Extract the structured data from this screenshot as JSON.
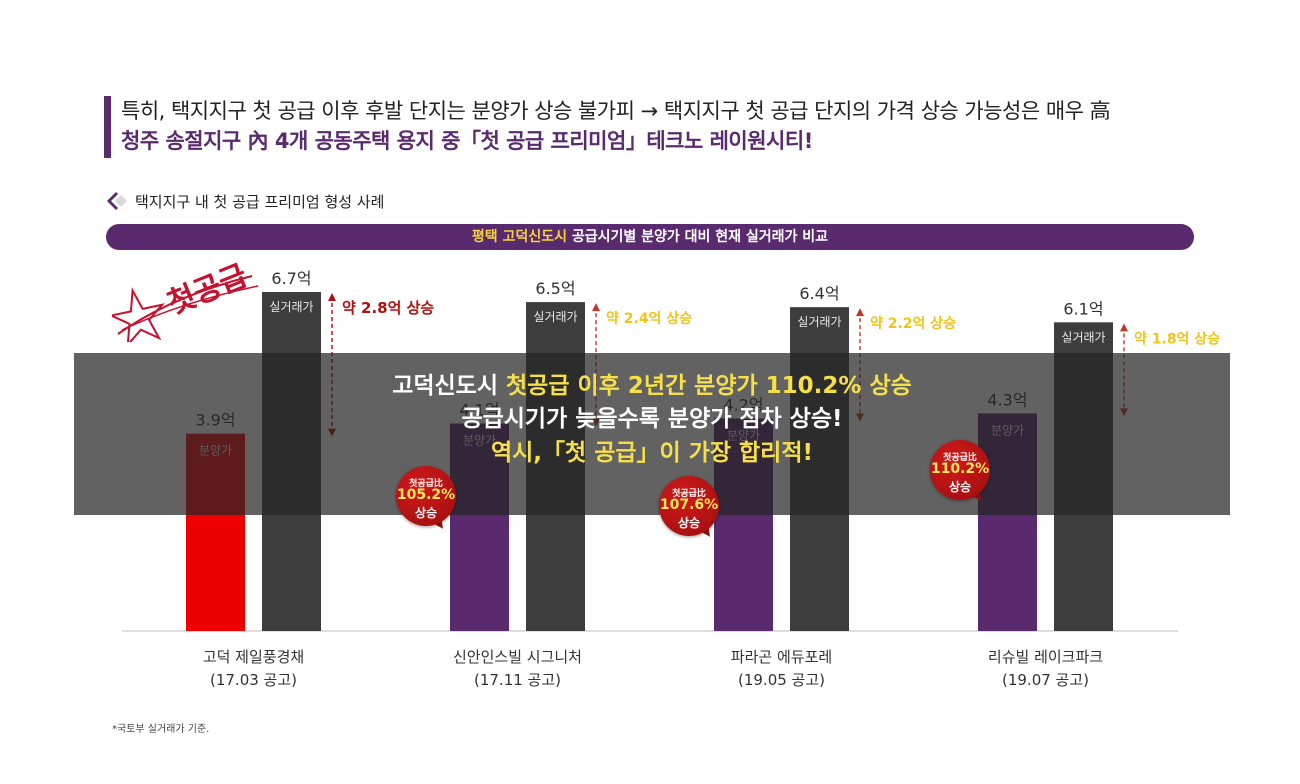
{
  "headline": {
    "line1": "특히, 택지지구 첫 공급 이후 후발 단지는 분양가 상승 불가피 → 택지지구 첫 공급 단지의 가격 상승 가능성은 매우 高",
    "line2": "청주 송절지구 內 4개 공동주택 용지 중「첫 공급 프리미엄」테크노 레이원시티!"
  },
  "section_title": "택지지구 내 첫 공급 프리미엄 형성 사례",
  "banner": {
    "highlight": "평택 고덕신도시",
    "rest": " 공급시기별 분양가 대비 현재 실거래가 비교"
  },
  "stamp_text": "첫공급",
  "overlay": {
    "line1_a": "고덕신도시 ",
    "line1_b": "첫공급 이후 2년간 분양가 110.2% 상승",
    "line2": "공급시기가 늦을수록 분양가 점차 상승!",
    "line3": "역시,「첫 공급」이 가장 합리적!"
  },
  "badges": [
    {
      "top": "첫공급比",
      "value": "105.2%",
      "bottom": "상승"
    },
    {
      "top": "첫공급比",
      "value": "107.6%",
      "bottom": "상승"
    },
    {
      "top": "첫공급比",
      "value": "110.2%",
      "bottom": "상승"
    }
  ],
  "footnote": "*국토부 실거래가 기준.",
  "colors": {
    "purple": "#5a2a6e",
    "red_bar": "#ee0000",
    "dark_bar": "#3d3d3d",
    "yellow": "#f0c419",
    "arrow_red": "#b01010"
  },
  "chart_data": {
    "type": "bar",
    "categories": [
      "고덕 제일풍경채",
      "신안인스빌 시그니처",
      "파라곤 에듀포레",
      "리슈빌 레이크파크"
    ],
    "category_sub": [
      "(17.03 공고)",
      "(17.11 공고)",
      "(19.05 공고)",
      "(19.07 공고)"
    ],
    "series": [
      {
        "name": "분양가",
        "values": [
          3.9,
          4.1,
          4.2,
          4.3
        ],
        "labels": [
          "3.9억",
          "4.1억",
          "4.2억",
          "4.3억"
        ]
      },
      {
        "name": "실거래가",
        "values": [
          6.7,
          6.5,
          6.4,
          6.1
        ],
        "labels": [
          "6.7억",
          "6.5억",
          "6.4억",
          "6.1억"
        ]
      }
    ],
    "increase_labels": [
      "약 2.8억 상승",
      "약 2.4억 상승",
      "약 2.2억 상승",
      "약 1.8억 상승"
    ],
    "unit": "억",
    "ylim": [
      0,
      7
    ]
  }
}
